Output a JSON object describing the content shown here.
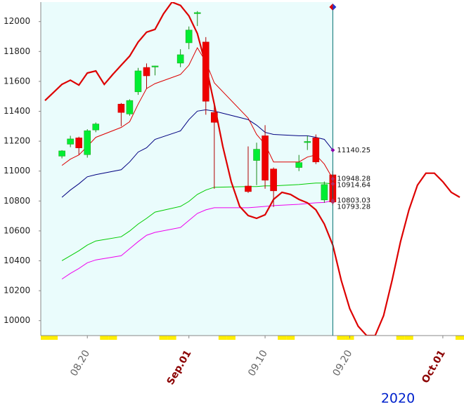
{
  "chart_data": {
    "type": "candlestick",
    "year": "2020",
    "xlim": [
      "08.15",
      "10.03"
    ],
    "xticks": [
      {
        "value": "08.20",
        "label": "08.20"
      },
      {
        "value": "09.01",
        "label": "Sep.01"
      },
      {
        "value": "09.10",
        "label": "09.10"
      },
      {
        "value": "09.20",
        "label": "09.20"
      },
      {
        "value": "10.01",
        "label": "Oct.01"
      }
    ],
    "ylim": [
      9900,
      12130
    ],
    "yticks": [
      10000,
      10200,
      10400,
      10600,
      10800,
      11000,
      11200,
      11400,
      11600,
      11800,
      12000
    ],
    "cursor": "09.18",
    "up_color": "#00ee33",
    "down_color": "#ee0000",
    "x": [
      "08.17",
      "08.18",
      "08.19",
      "08.20",
      "08.21",
      "08.24",
      "08.25",
      "08.26",
      "08.27",
      "08.28",
      "08.31",
      "09.01",
      "09.02",
      "09.03",
      "09.04",
      "09.08",
      "09.09",
      "09.10",
      "09.11",
      "09.14",
      "09.15",
      "09.16",
      "09.17",
      "09.18"
    ],
    "open": [
      11100,
      11180,
      11222,
      11110,
      11275,
      11448,
      11382,
      11530,
      11693,
      11700,
      11722,
      11858,
      12055,
      11863,
      11392,
      10900,
      11071,
      11236,
      11014,
      11024,
      11195,
      11222,
      10807,
      10975
    ],
    "high": [
      11140,
      11236,
      11230,
      11280,
      11325,
      11455,
      11480,
      11690,
      11720,
      11705,
      11815,
      11967,
      12070,
      11896,
      11440,
      11165,
      11190,
      11307,
      11024,
      11108,
      11236,
      11245,
      10930,
      11000
    ],
    "low": [
      11085,
      11160,
      11110,
      11090,
      11260,
      11300,
      11370,
      11510,
      11550,
      11640,
      11695,
      11815,
      11970,
      11377,
      10882,
      10854,
      10906,
      10882,
      10760,
      11000,
      11141,
      11047,
      10788,
      10770
    ],
    "close": [
      11135,
      11215,
      11155,
      11270,
      11315,
      11392,
      11472,
      11670,
      11637,
      11703,
      11778,
      11943,
      12060,
      11467,
      11326,
      10863,
      11146,
      10939,
      10868,
      11057,
      11198,
      11061,
      10910,
      10793.28
    ],
    "series": [
      {
        "color": "#000080",
        "width": 1,
        "values": [
          10825,
          10873,
          10915,
          10962,
          10976,
          11009,
          11061,
          11127,
          11156,
          11212,
          11269,
          11344,
          11401,
          11410,
          11401,
          11344,
          11307,
          11259,
          11245,
          11236,
          11236,
          11226,
          11212,
          11140.25
        ]
      },
      {
        "color": "#00cc00",
        "width": 1,
        "values": [
          10401,
          10434,
          10467,
          10505,
          10533,
          10561,
          10599,
          10646,
          10684,
          10726,
          10764,
          10797,
          10844,
          10873,
          10892,
          10896,
          10896,
          10901,
          10901,
          10910,
          10915,
          10920,
          10920,
          10914.64
        ]
      },
      {
        "color": "#ee00ee",
        "width": 1,
        "values": [
          10278,
          10316,
          10349,
          10387,
          10406,
          10434,
          10481,
          10528,
          10571,
          10590,
          10623,
          10670,
          10717,
          10741,
          10755,
          10755,
          10759,
          10764,
          10769,
          10778,
          10783,
          10788,
          10790,
          10803.03
        ]
      },
      {
        "color": "#dd0000",
        "width": 1,
        "values": [
          11038,
          11080,
          11108,
          11165,
          11226,
          11292,
          11330,
          11448,
          11552,
          11585,
          11646,
          11708,
          11825,
          11731,
          11590,
          11354,
          11245,
          11179,
          11061,
          11061,
          11094,
          11108,
          11047,
          10948.28
        ]
      },
      {
        "color": "#dd0000",
        "width": 2.2,
        "x": [
          "08.15",
          "08.17",
          "08.18",
          "08.19",
          "08.20",
          "08.21",
          "08.22",
          "08.23",
          "08.24",
          "08.25",
          "08.26",
          "08.27",
          "08.28",
          "08.29",
          "08.30",
          "08.31",
          "09.01",
          "09.02",
          "09.03",
          "09.04",
          "09.05",
          "09.06",
          "09.07",
          "09.08",
          "09.09",
          "09.10",
          "09.11",
          "09.12",
          "09.13",
          "09.14",
          "09.15",
          "09.16",
          "09.17",
          "09.18",
          "09.19",
          "09.20",
          "09.21",
          "09.22",
          "09.23",
          "09.24",
          "09.25",
          "09.26",
          "09.27",
          "09.28",
          "09.29",
          "09.30",
          "10.01",
          "10.02",
          "10.03"
        ],
        "values": [
          11472,
          11580,
          11608,
          11575,
          11656,
          11670,
          11580,
          11646,
          11708,
          11769,
          11863,
          11929,
          11948,
          12052,
          12130,
          12108,
          12038,
          11920,
          11708,
          11448,
          11165,
          10929,
          10764,
          10703,
          10684,
          10708,
          10811,
          10858,
          10844,
          10811,
          10788,
          10741,
          10646,
          10505,
          10269,
          10080,
          9962,
          9900,
          9900,
          10033,
          10269,
          10528,
          10741,
          10906,
          10986,
          10986,
          10929,
          10858,
          10825
        ]
      }
    ],
    "last_values": [
      11140.25,
      10948.28,
      10914.64,
      10803.03,
      10793.28
    ]
  }
}
